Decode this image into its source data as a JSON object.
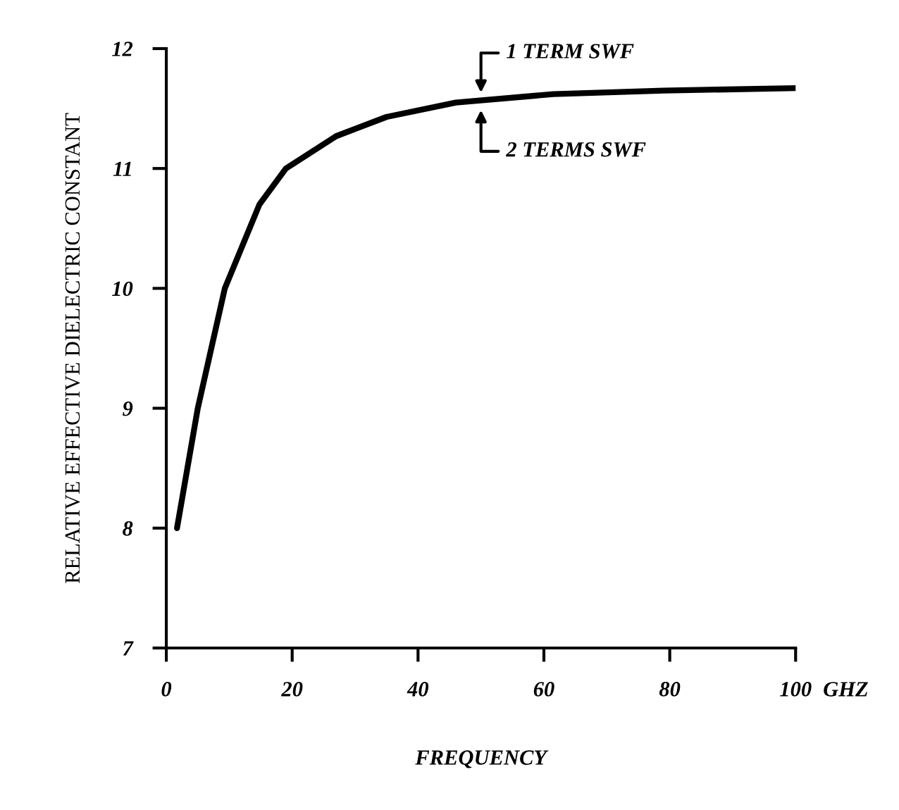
{
  "chart_data": {
    "type": "line",
    "xlabel": "FREQUENCY",
    "ylabel": "RELATIVE EFFECTIVE DIELECTRIC CONSTANT",
    "x": [
      1.7,
      5,
      9.3,
      14.8,
      19,
      27,
      35,
      46,
      61.5,
      79,
      100
    ],
    "series": [
      {
        "color": "#000000",
        "values": [
          8.0,
          9.0,
          10.0,
          10.7,
          11.0,
          11.27,
          11.43,
          11.55,
          11.62,
          11.65,
          11.67
        ]
      }
    ],
    "xlim": [
      0,
      100
    ],
    "xticks": [
      0,
      20,
      40,
      60,
      80,
      100
    ],
    "ylim": [
      7,
      12
    ],
    "yticks": [
      7,
      8,
      9,
      10,
      11,
      12
    ],
    "grid": false,
    "marker": "none",
    "line_style": "solid",
    "annotations": [
      {
        "text": "1 TERM SWF",
        "x": 50,
        "y": 11.6
      },
      {
        "text": "2 TERMS SWF",
        "x": 50,
        "y": 11.52
      },
      "GHZ"
    ]
  }
}
